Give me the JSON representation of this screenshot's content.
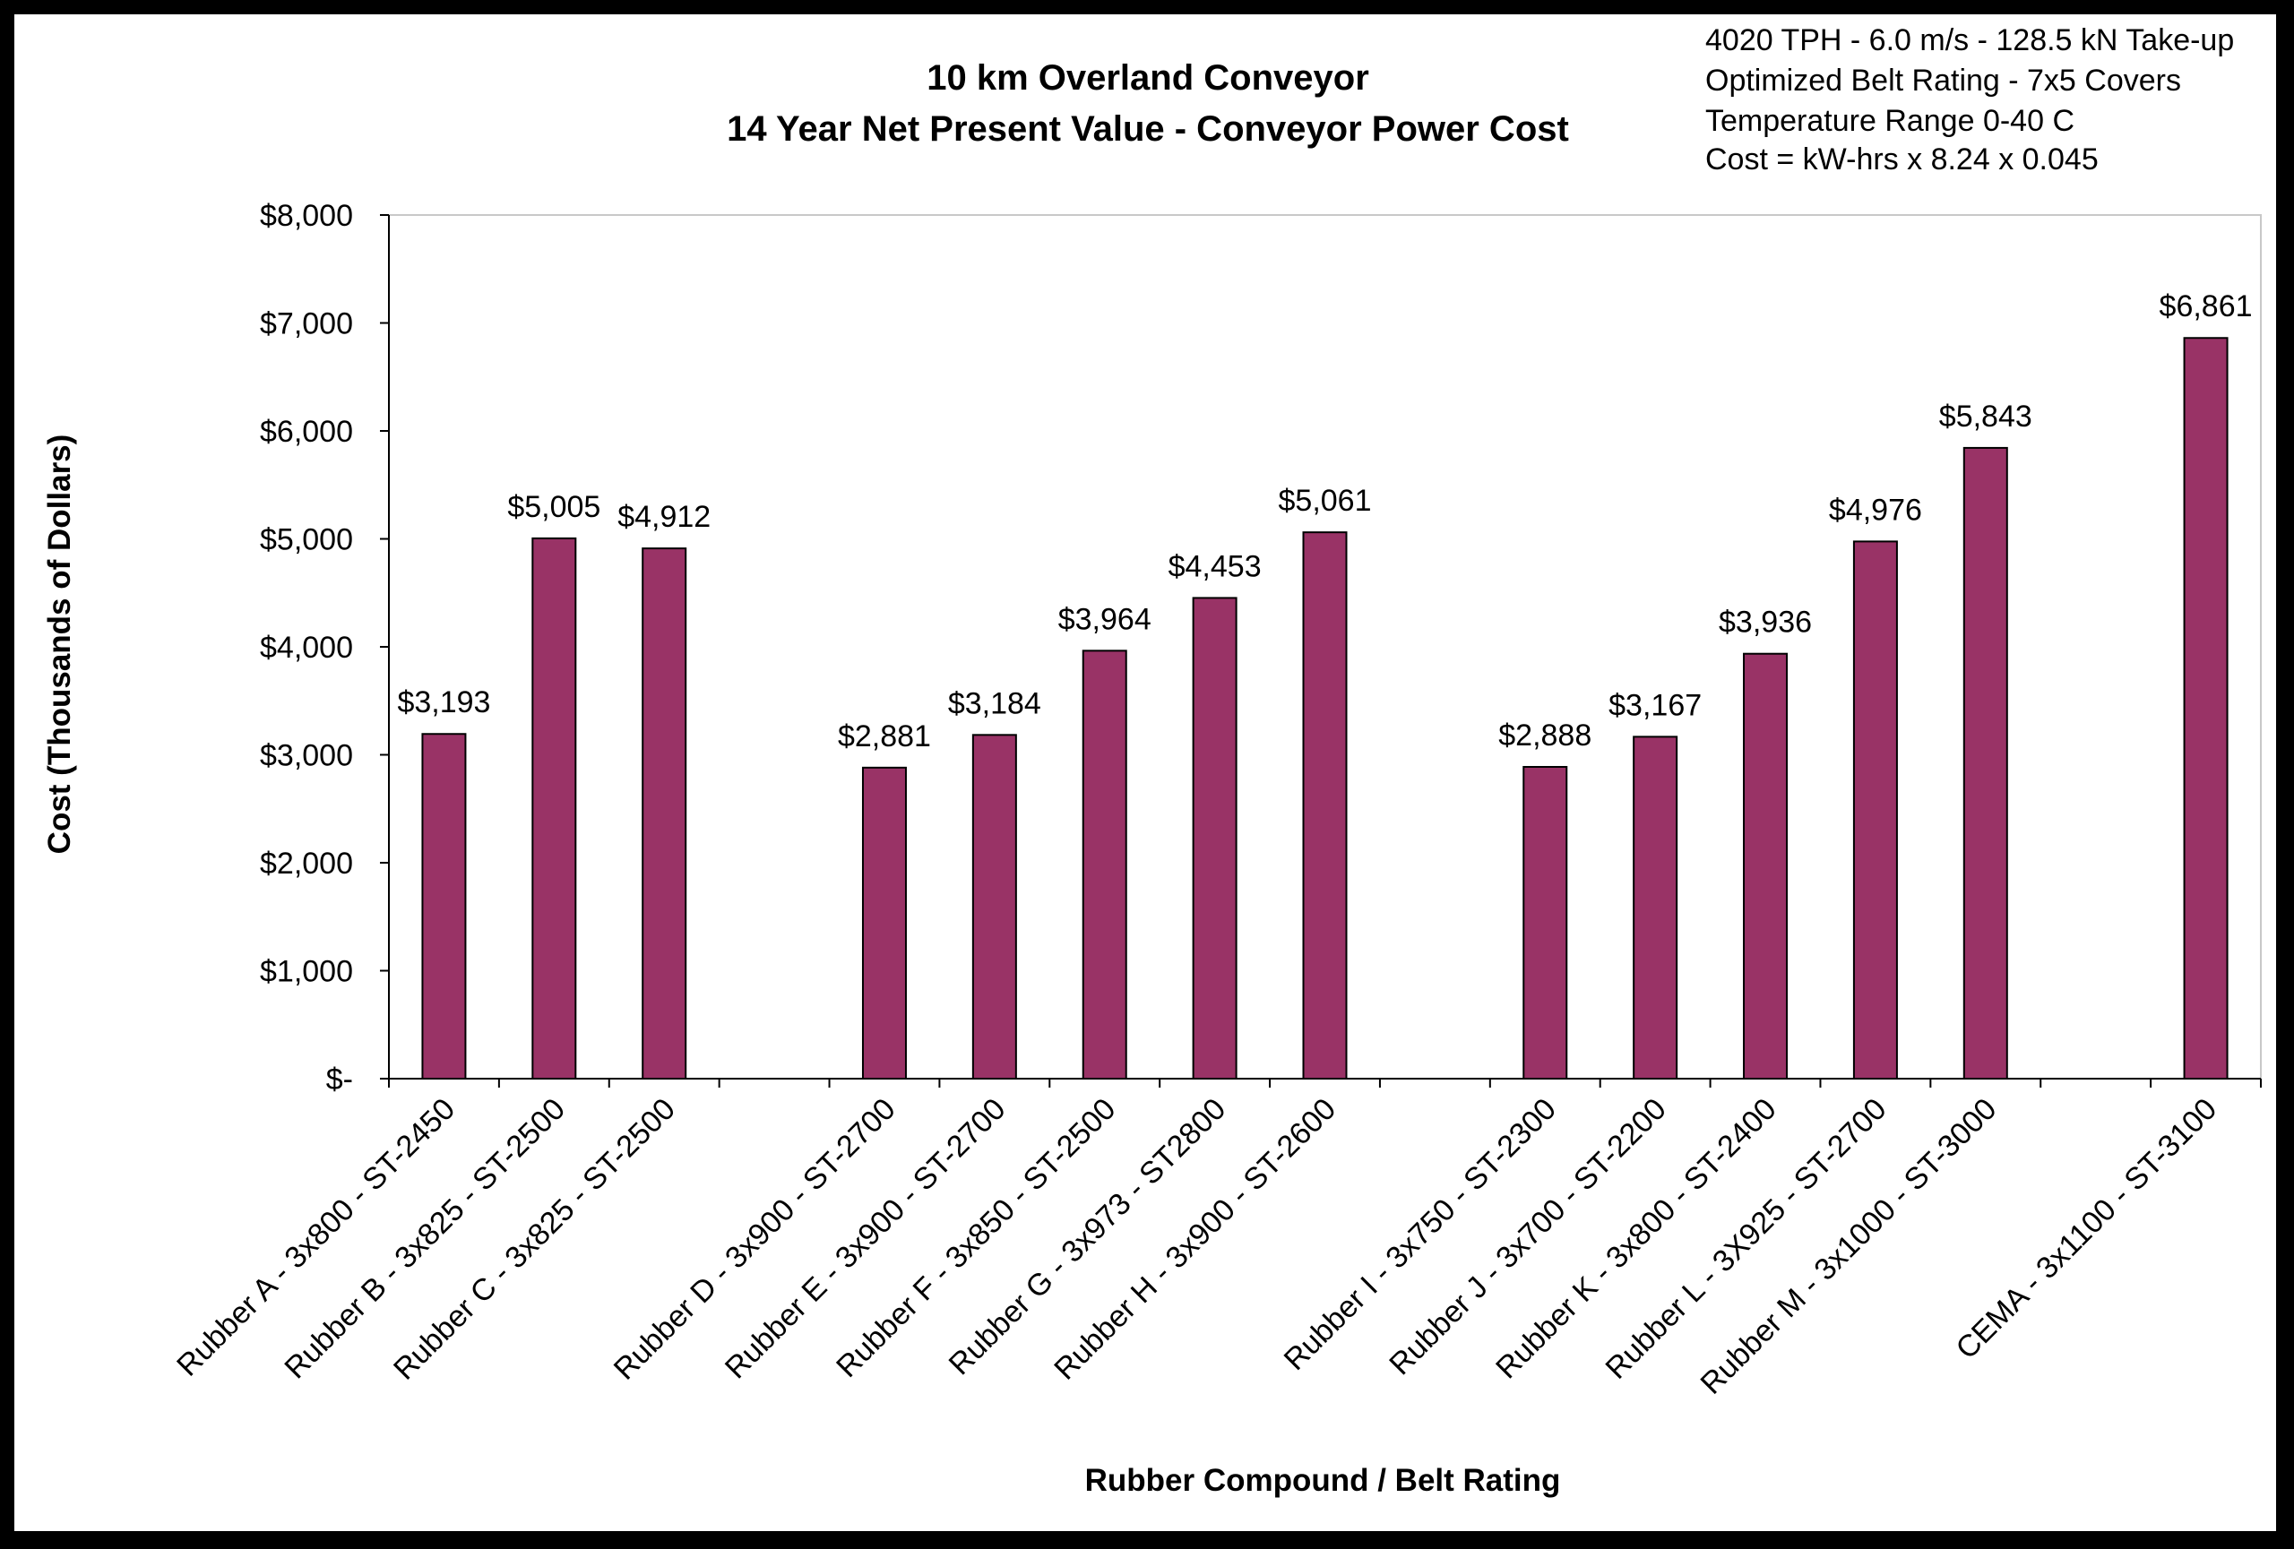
{
  "chart_data": {
    "type": "bar",
    "title": "10 km Overland Conveyor",
    "subtitle": "14 Year  Net Present Value  -  Conveyor Power Cost",
    "annotations": [
      "4020 TPH - 6.0 m/s - 128.5 kN Take-up",
      "Optimized Belt Rating - 7x5 Covers",
      "Temperature Range 0-40 C",
      "Cost = kW-hrs x 8.24 x 0.045"
    ],
    "xlabel": "Rubber Compound / Belt Rating",
    "ylabel": "Cost  (Thousands of Dollars)",
    "ylim": [
      0,
      8000
    ],
    "yticks": [
      0,
      1000,
      2000,
      3000,
      4000,
      5000,
      6000,
      7000,
      8000
    ],
    "ytick_labels": [
      "$-",
      "$1,000",
      "$2,000",
      "$3,000",
      "$4,000",
      "$5,000",
      "$6,000",
      "$7,000",
      "$8,000"
    ],
    "grid": false,
    "legend": "none",
    "categories": [
      "Rubber A - 3x800 - ST-2450",
      "Rubber B - 3x825 - ST-2500",
      "Rubber C - 3x825 - ST-2500",
      "",
      "Rubber D - 3x900 - ST-2700",
      "Rubber E - 3x900 - ST-2700",
      "Rubber F - 3x850 - ST-2500",
      "Rubber G - 3x973 - ST2800",
      "Rubber H - 3x900 - ST-2600",
      "",
      "Rubber I - 3x750 - ST-2300",
      "Rubber J - 3x700 - ST-2200",
      "Rubber K - 3x800 - ST-2400",
      "Rubber L - 3X925 - ST-2700",
      "Rubber M - 3x1000 - ST-3000",
      "",
      "CEMA - 3x1100 - ST-3100"
    ],
    "values": [
      3193,
      5005,
      4912,
      null,
      2881,
      3184,
      3964,
      4453,
      5061,
      null,
      2888,
      3167,
      3936,
      4976,
      5843,
      null,
      6861
    ],
    "data_labels": [
      "$3,193",
      "$5,005",
      "$4,912",
      "",
      "$2,881",
      "$3,184",
      "$3,964",
      "$4,453",
      "$5,061",
      "",
      "$2,888",
      "$3,167",
      "$3,936",
      "$4,976",
      "$5,843",
      "",
      "$6,861"
    ],
    "bar_color": "#993366",
    "bar_edge_color": "#000000"
  }
}
